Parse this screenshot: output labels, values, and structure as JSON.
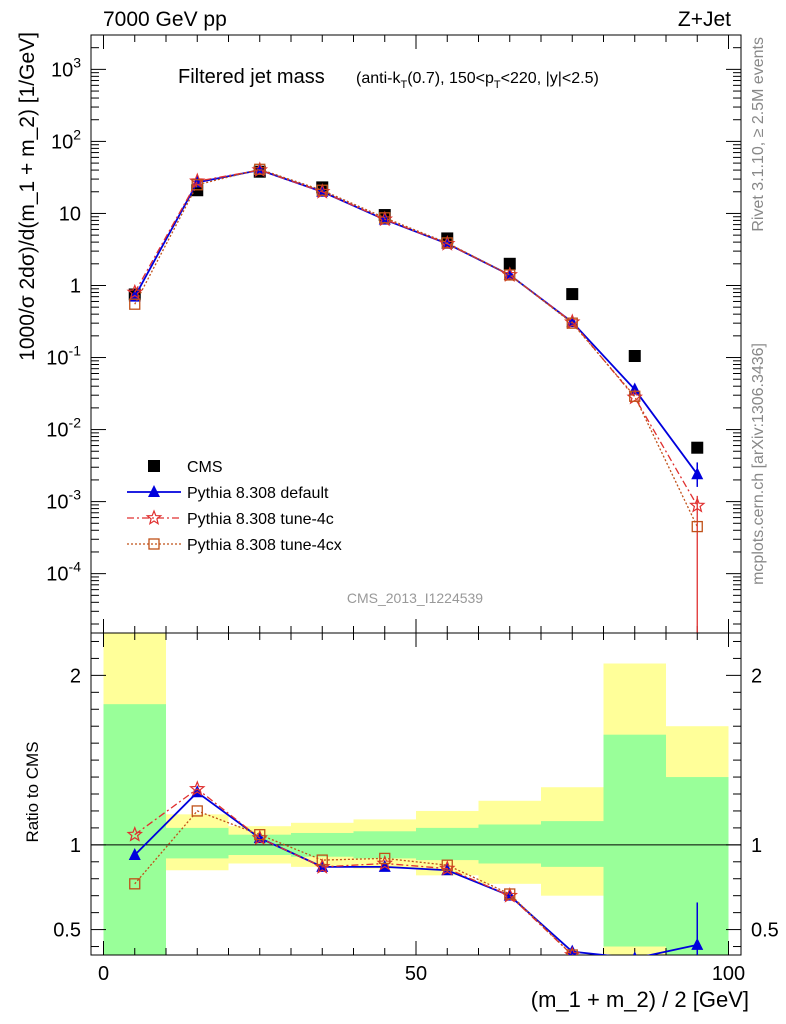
{
  "header": {
    "energy_label": "7000 GeV pp",
    "process_label": "Z+Jet"
  },
  "side_labels": {
    "rivet": "Rivet 3.1.10, ≥ 2.5M events",
    "mcplots": "mcplots.cern.ch [arXiv:1306.3436]"
  },
  "analysis_id": "CMS_2013_I1224539",
  "title": {
    "main": "Filtered jet mass",
    "cuts": "(anti-k_T(0.7), 150<p_T<220, |y|<2.5)"
  },
  "colors": {
    "cms": "#000000",
    "default": "#0000dd",
    "tune4c": "#e03030",
    "tune4cx": "#c05018",
    "band_inner": "#99ff99",
    "band_outer": "#ffff99"
  },
  "chart_data": [
    {
      "type": "line",
      "panel": "main",
      "xlabel": "(m_1 + m_2) / 2 [GeV]",
      "ylabel": "1000/σ 2dσ)/d(m_1 + m_2) [1/GeV]",
      "yscale": "log",
      "xlim": [
        -2,
        102
      ],
      "ylim": [
        1.5e-05,
        3000
      ],
      "x": [
        5,
        15,
        25,
        35,
        45,
        55,
        65,
        75,
        85,
        95
      ],
      "yticks": [
        {
          "label": "10^-4",
          "value": 0.0001
        },
        {
          "label": "10^-3",
          "value": 0.001
        },
        {
          "label": "10^-2",
          "value": 0.01
        },
        {
          "label": "10^-1",
          "value": 0.1
        },
        {
          "label": "1",
          "value": 1
        },
        {
          "label": "10",
          "value": 10
        },
        {
          "label": "10^2",
          "value": 100
        },
        {
          "label": "10^3",
          "value": 1000
        }
      ],
      "legend_position": "lower-left",
      "series": [
        {
          "name": "CMS",
          "key": "cms",
          "values": [
            0.75,
            21,
            38,
            23,
            9.5,
            4.5,
            2.0,
            0.76,
            0.105,
            0.0056
          ]
        },
        {
          "name": "Pythia 8.308 default",
          "key": "default",
          "values": [
            0.7,
            27,
            40,
            20,
            8.2,
            3.8,
            1.4,
            0.31,
            0.036,
            0.0024
          ]
        },
        {
          "name": "Pythia 8.308 tune-4c",
          "key": "tune4c",
          "values": [
            0.8,
            28,
            40,
            20,
            8.3,
            3.8,
            1.4,
            0.31,
            0.028,
            0.00088
          ]
        },
        {
          "name": "Pythia 8.308 tune-4cx",
          "key": "tune4cx",
          "values": [
            0.55,
            25,
            41,
            21,
            8.7,
            3.9,
            1.4,
            0.3,
            0.029,
            0.00045
          ]
        }
      ]
    },
    {
      "type": "line",
      "panel": "ratio",
      "xlabel": "(m_1 + m_2) / 2 [GeV]",
      "ylabel": "Ratio to CMS",
      "xlim": [
        -2,
        102
      ],
      "ylim": [
        0.35,
        2.25
      ],
      "x": [
        5,
        15,
        25,
        35,
        45,
        55,
        65,
        75,
        85,
        95
      ],
      "xticks": [
        0,
        50,
        100
      ],
      "yticks": [
        0.5,
        1,
        2
      ],
      "band_edges": [
        0,
        10,
        20,
        30,
        40,
        50,
        60,
        70,
        80,
        90,
        100
      ],
      "band_inner": [
        [
          0.2,
          1.83
        ],
        [
          0.92,
          1.1
        ],
        [
          0.94,
          1.06
        ],
        [
          0.93,
          1.07
        ],
        [
          0.92,
          1.08
        ],
        [
          0.91,
          1.1
        ],
        [
          0.89,
          1.12
        ],
        [
          0.87,
          1.14
        ],
        [
          0.4,
          1.65
        ],
        [
          0.3,
          1.4
        ]
      ],
      "band_outer": [
        [
          0.2,
          2.4
        ],
        [
          0.85,
          1.18
        ],
        [
          0.89,
          1.11
        ],
        [
          0.87,
          1.13
        ],
        [
          0.86,
          1.15
        ],
        [
          0.82,
          1.2
        ],
        [
          0.77,
          1.26
        ],
        [
          0.7,
          1.34
        ],
        [
          0.3,
          2.07
        ],
        [
          0.2,
          1.7
        ]
      ],
      "series": [
        {
          "name": "Pythia 8.308 default",
          "key": "default",
          "values": [
            0.94,
            1.31,
            1.04,
            0.87,
            0.87,
            0.85,
            0.7,
            0.37,
            0.33,
            0.41
          ]
        },
        {
          "name": "Pythia 8.308 tune-4c",
          "key": "tune4c",
          "values": [
            1.06,
            1.33,
            1.04,
            0.87,
            0.89,
            0.86,
            0.7,
            0.35,
            null,
            null
          ]
        },
        {
          "name": "Pythia 8.308 tune-4cx",
          "key": "tune4cx",
          "values": [
            0.77,
            1.2,
            1.06,
            0.91,
            0.92,
            0.88,
            0.71,
            0.35,
            null,
            null
          ]
        }
      ]
    }
  ]
}
